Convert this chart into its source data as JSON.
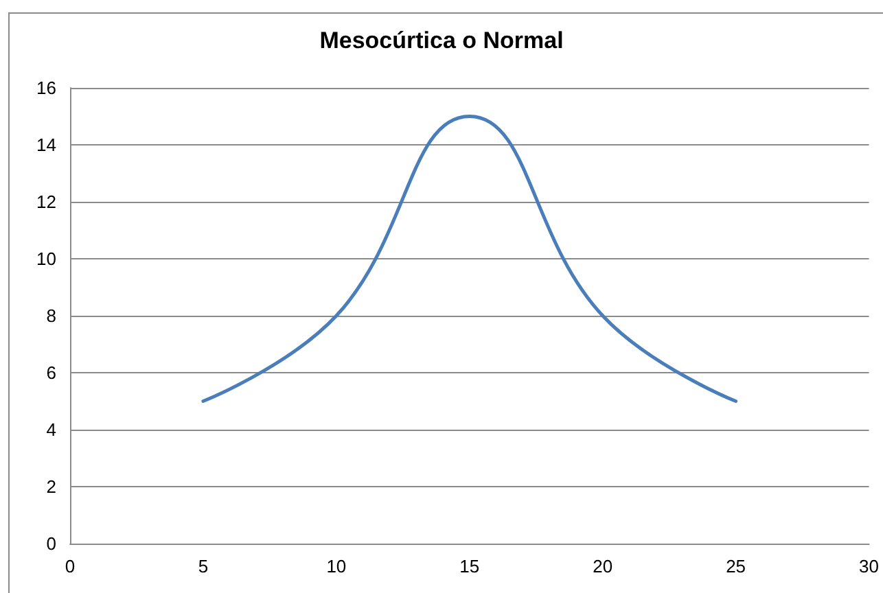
{
  "chart_data": {
    "type": "line",
    "title": "Mesocúrtica o Normal",
    "x": [
      5,
      10,
      15,
      20,
      25
    ],
    "values": [
      5,
      8,
      15,
      8,
      5
    ],
    "color": "#4a7ebb",
    "xlim": [
      0,
      30
    ],
    "xticks": [
      0,
      5,
      10,
      15,
      20,
      25,
      30
    ],
    "ylim": [
      0,
      16
    ],
    "yticks": [
      0,
      2,
      4,
      6,
      8,
      10,
      12,
      14,
      16
    ],
    "grid": "y",
    "marker": "none"
  }
}
